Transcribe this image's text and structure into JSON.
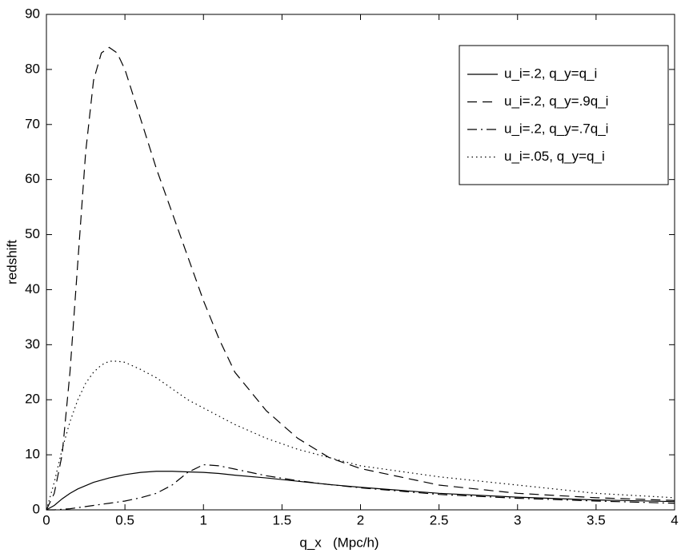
{
  "chart_data": {
    "type": "line",
    "xlabel": "q_x   (Mpc/h)",
    "ylabel": "redshift",
    "x": [
      0,
      0.05,
      0.1,
      0.15,
      0.2,
      0.25,
      0.3,
      0.35,
      0.4,
      0.45,
      0.5,
      0.6,
      0.7,
      0.8,
      0.9,
      1.0,
      1.1,
      1.2,
      1.4,
      1.6,
      1.8,
      2.0,
      2.5,
      3.0,
      3.5,
      4.0
    ],
    "series": [
      {
        "name": "u_i=.2, q_y=q_i",
        "color": "#000000",
        "dash": "solid",
        "values": [
          0,
          0.8,
          2,
          3,
          3.8,
          4.4,
          5,
          5.4,
          5.8,
          6.1,
          6.4,
          6.8,
          7,
          7,
          6.9,
          6.8,
          6.6,
          6.3,
          5.8,
          5.2,
          4.6,
          4.1,
          3,
          2.3,
          1.8,
          1.5
        ]
      },
      {
        "name": "u_i=.2, q_y=.9q_i",
        "color": "#000000",
        "dash": "dashed",
        "values": [
          0,
          3,
          10,
          25,
          45,
          65,
          78,
          83,
          84,
          83,
          80,
          71,
          62,
          54,
          46,
          38,
          31,
          25,
          18,
          13,
          9.5,
          7.5,
          4.5,
          3,
          2.2,
          1.7
        ]
      },
      {
        "name": "u_i=.2, q_y=.7q_i",
        "color": "#000000",
        "dash": "dashdot",
        "values": [
          0,
          0,
          0.1,
          0.2,
          0.4,
          0.6,
          0.8,
          1,
          1.2,
          1.4,
          1.6,
          2.2,
          3,
          4.5,
          6.8,
          8.2,
          8,
          7.4,
          6.2,
          5.3,
          4.6,
          4,
          2.8,
          2.1,
          1.6,
          1.2
        ]
      },
      {
        "name": "u_i=.05, q_y=q_i",
        "color": "#000000",
        "dash": "dotted",
        "values": [
          0,
          5,
          11,
          16,
          20,
          23,
          25,
          26.3,
          27,
          27,
          26.8,
          25.5,
          24,
          22,
          20,
          18.5,
          17,
          15.5,
          13,
          11,
          9.5,
          8,
          6,
          4.5,
          3,
          2.2
        ]
      }
    ],
    "xlim": [
      0,
      4
    ],
    "xticks": [
      0,
      0.5,
      1,
      1.5,
      2,
      2.5,
      3,
      3.5,
      4
    ],
    "ylim": [
      0,
      90
    ],
    "yticks": [
      0,
      10,
      20,
      30,
      40,
      50,
      60,
      70,
      80,
      90
    ],
    "grid": false,
    "legend": "upper right"
  }
}
